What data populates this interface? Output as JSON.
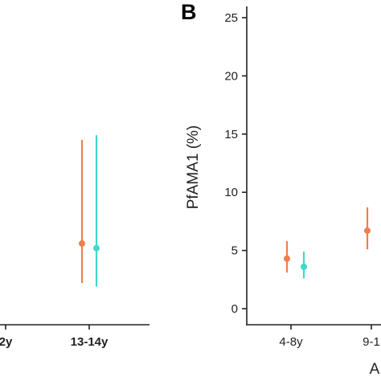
{
  "colors": {
    "orange": "#EE7F4E",
    "teal": "#3FD9CB",
    "axis": "#222222"
  },
  "chart_data": [
    {
      "type": "errorbar",
      "panel": "",
      "ylabel": "",
      "categories": [
        "2y",
        "13-14y"
      ],
      "series": [
        {
          "color": "orange",
          "points": [
            {
              "category": "13-14y",
              "y": 5.6,
              "lo": 2.2,
              "hi": 14.5
            }
          ]
        },
        {
          "color": "teal",
          "points": [
            {
              "category": "13-14y",
              "y": 5.2,
              "lo": 1.9,
              "hi": 14.9
            }
          ]
        }
      ],
      "grid": false,
      "legend": "none"
    },
    {
      "type": "errorbar",
      "panel": "B",
      "ylabel": "PfAMA1 (%)",
      "xlabel": "A",
      "ylim": [
        0,
        26
      ],
      "yticks": [
        0,
        5,
        10,
        15,
        20,
        25
      ],
      "categories": [
        "4-8y",
        "9-1"
      ],
      "series": [
        {
          "color": "orange",
          "points": [
            {
              "category": "4-8y",
              "y": 4.3,
              "lo": 3.1,
              "hi": 5.8
            },
            {
              "category": "9-1",
              "y": 6.7,
              "lo": 5.1,
              "hi": 8.7
            }
          ]
        },
        {
          "color": "teal",
          "points": [
            {
              "category": "4-8y",
              "y": 3.6,
              "lo": 2.6,
              "hi": 4.9
            }
          ]
        }
      ],
      "grid": false,
      "legend": "none"
    }
  ]
}
